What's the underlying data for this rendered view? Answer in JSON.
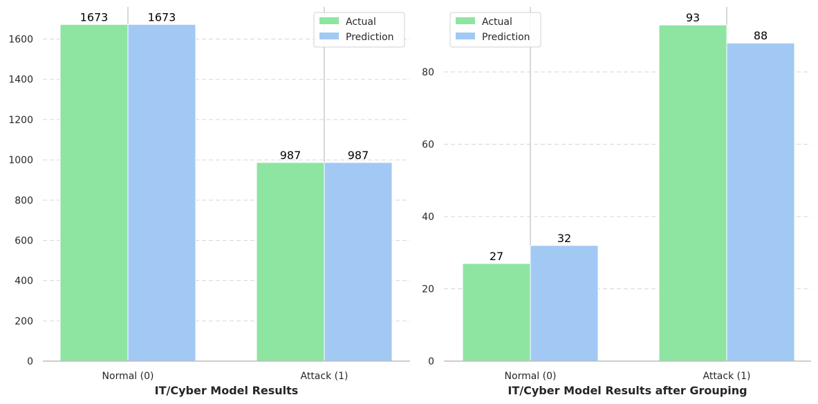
{
  "colors": {
    "actual": "#8de5a1",
    "prediction": "#a1c9f4"
  },
  "chart_data": [
    {
      "type": "bar",
      "xlabel": "IT/Cyber Model Results",
      "ylabel": "",
      "title": "",
      "categories": [
        "Normal (0)",
        "Attack (1)"
      ],
      "series": [
        {
          "name": "Actual",
          "values": [
            1673,
            987
          ]
        },
        {
          "name": "Prediction",
          "values": [
            1673,
            987
          ]
        }
      ],
      "ylim": [
        0,
        1760
      ],
      "yticks": [
        0,
        200,
        400,
        600,
        800,
        1000,
        1200,
        1400,
        1600
      ],
      "grid": true,
      "legend": "top-right"
    },
    {
      "type": "bar",
      "xlabel": "IT/Cyber Model Results after Grouping",
      "ylabel": "",
      "title": "",
      "categories": [
        "Normal (0)",
        "Attack (1)"
      ],
      "series": [
        {
          "name": "Actual",
          "values": [
            27,
            93
          ]
        },
        {
          "name": "Prediction",
          "values": [
            32,
            88
          ]
        }
      ],
      "ylim": [
        0,
        98
      ],
      "yticks": [
        0,
        20,
        40,
        60,
        80
      ],
      "grid": true,
      "legend": "top-left"
    }
  ]
}
